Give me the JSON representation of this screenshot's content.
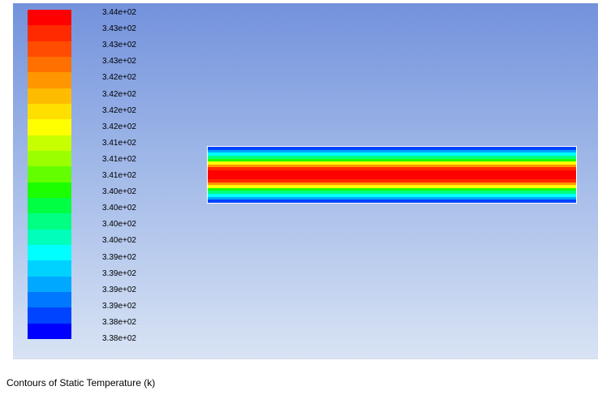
{
  "caption": "Contours of Static Temperature (k)",
  "chart_data": {
    "type": "heatmap",
    "title": "Contours of Static Temperature (k)",
    "colorbar": {
      "levels_top_to_bottom": [
        "3.44e+02",
        "3.43e+02",
        "3.43e+02",
        "3.43e+02",
        "3.42e+02",
        "3.42e+02",
        "3.42e+02",
        "3.42e+02",
        "3.41e+02",
        "3.41e+02",
        "3.41e+02",
        "3.40e+02",
        "3.40e+02",
        "3.40e+02",
        "3.40e+02",
        "3.39e+02",
        "3.39e+02",
        "3.39e+02",
        "3.39e+02",
        "3.38e+02",
        "3.38e+02"
      ],
      "colors_top_to_bottom": [
        "#ff0000",
        "#ff2a00",
        "#ff4c00",
        "#ff7000",
        "#ff9600",
        "#ffbb00",
        "#ffdf00",
        "#ffff00",
        "#c8ff00",
        "#9bff00",
        "#63ff00",
        "#1bff00",
        "#00ff42",
        "#00ff82",
        "#00ffbb",
        "#00ffff",
        "#00d2ff",
        "#00a8ff",
        "#0078ff",
        "#0044ff",
        "#0000ff"
      ],
      "min": 338,
      "max": 344,
      "units": "k"
    },
    "contour_profile_top_to_bottom": [
      "#0044ff",
      "#00a8ff",
      "#00ffff",
      "#00ff82",
      "#1bff00",
      "#ffff00",
      "#ff9600",
      "#ff2a00",
      "#ff0000",
      "#ff0000",
      "#ff0000",
      "#ff2a00",
      "#ff9600",
      "#ffff00",
      "#1bff00",
      "#00ff82",
      "#00ffff",
      "#00a8ff",
      "#0044ff"
    ]
  }
}
